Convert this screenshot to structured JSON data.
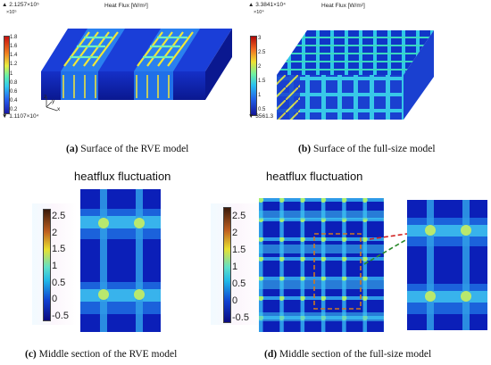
{
  "panel_a": {
    "colorbar_title": "Heat Flux [W/m²]",
    "max_label": "▲ 2.1257×10⁵",
    "exponent": "×10⁵",
    "ticks": [
      "1.8",
      "1.6",
      "1.4",
      "1.2",
      "1",
      "0.8",
      "0.6",
      "0.4",
      "0.2"
    ],
    "min_label": "▼ 1.1107×10⁴",
    "axes": {
      "z": "z",
      "y": "y",
      "x": "x"
    },
    "caption_letter": "(a)",
    "caption_text": " Surface of the RVE model"
  },
  "panel_b": {
    "colorbar_title": "Heat Flux [W/m²]",
    "max_label": "▲ 3.3841×10⁴",
    "exponent": "×10⁴",
    "ticks": [
      "3",
      "2.5",
      "2",
      "1.5",
      "1",
      "0.5"
    ],
    "min_label": "▼ 3561.3",
    "caption_letter": "(b)",
    "caption_text": " Surface of the full-size model"
  },
  "panel_c": {
    "title": "heatflux fluctuation",
    "ticks": [
      "2.5",
      "2",
      "1.5",
      "1",
      "0.5",
      "0",
      "-0.5"
    ],
    "caption_letter": "(c)",
    "caption_text": " Middle section of the RVE model"
  },
  "panel_d": {
    "title": "heatflux fluctuation",
    "ticks": [
      "2.5",
      "2",
      "1.5",
      "1",
      "0.5",
      "0",
      "-0.5"
    ],
    "caption_letter": "(d)",
    "caption_text": " Middle section of the full-size model"
  },
  "colors": {
    "base": "#0b1fb8",
    "band": "#2aa8f0",
    "hot": "#f0e838",
    "dash_orange": "#d07820",
    "dash_green": "#2a8a2a",
    "dash_red": "#d02020"
  }
}
